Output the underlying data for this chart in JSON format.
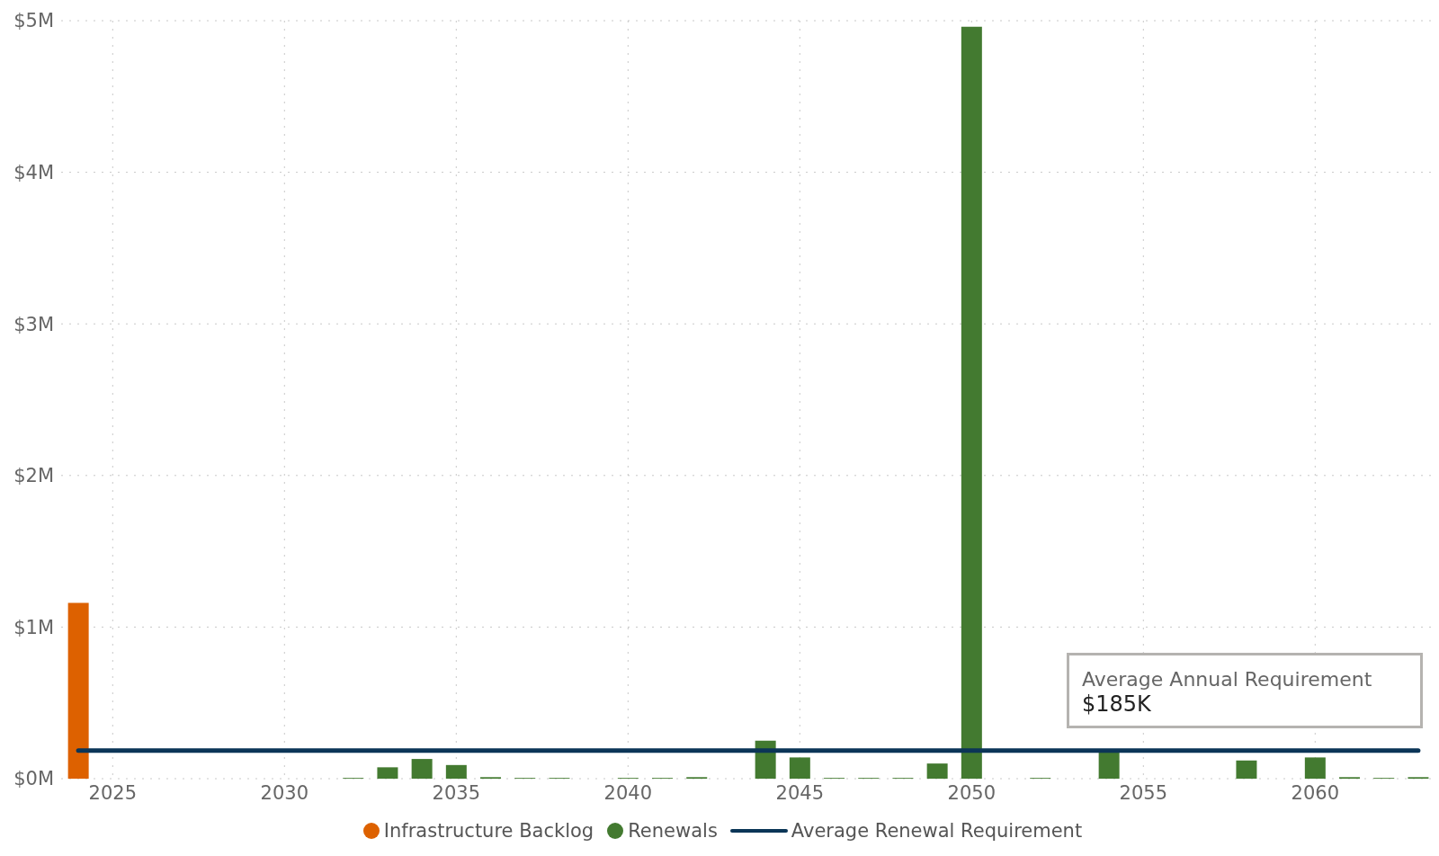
{
  "chart_data": {
    "type": "bar",
    "stacked": true,
    "categories": [
      null,
      "2025",
      null,
      null,
      null,
      null,
      "2030",
      null,
      null,
      null,
      null,
      "2035",
      null,
      null,
      null,
      null,
      "2040",
      null,
      null,
      null,
      null,
      "2045",
      null,
      null,
      null,
      null,
      "2050",
      null,
      null,
      null,
      null,
      "2055",
      null,
      null,
      null,
      null,
      "2060",
      null,
      null,
      null
    ],
    "series": [
      {
        "name": "Infrastructure Backlog",
        "color": "#dd6100",
        "values": [
          1.16,
          null,
          null,
          null,
          null,
          null,
          null,
          null,
          null,
          null,
          null,
          null,
          null,
          null,
          null,
          null,
          null,
          null,
          null,
          null,
          null,
          null,
          null,
          null,
          null,
          null,
          null,
          null,
          null,
          null,
          null,
          null,
          null,
          null,
          null,
          null,
          null,
          null,
          null,
          null
        ]
      },
      {
        "name": "Renewals",
        "color": "#437a30",
        "values": [
          null,
          null,
          null,
          null,
          null,
          null,
          null,
          null,
          0.005,
          0.075,
          0.13,
          0.09,
          0.01,
          0.005,
          0.005,
          null,
          0.005,
          0.005,
          0.01,
          null,
          0.25,
          0.14,
          0.005,
          0.005,
          0.005,
          0.1,
          4.96,
          null,
          0.005,
          null,
          0.18,
          null,
          null,
          null,
          0.12,
          null,
          0.14,
          0.01,
          0.005,
          0.01
        ]
      },
      {
        "name": "Average Renewal Requirement",
        "type": "line",
        "color": "#0b3557",
        "values": [
          0.185,
          0.185,
          0.185,
          0.185,
          0.185,
          0.185,
          0.185,
          0.185,
          0.185,
          0.185,
          0.185,
          0.185,
          0.185,
          0.185,
          0.185,
          0.185,
          0.185,
          0.185,
          0.185,
          0.185,
          0.185,
          0.185,
          0.185,
          0.185,
          0.185,
          0.185,
          0.185,
          0.185,
          0.185,
          0.185,
          0.185,
          0.185,
          0.185,
          0.185,
          0.185,
          0.185,
          0.185,
          0.185,
          0.185,
          0.185
        ]
      }
    ],
    "ylim": [
      0,
      5
    ],
    "yticks": [
      {
        "value": 0,
        "label": "$0M"
      },
      {
        "value": 1,
        "label": "$1M"
      },
      {
        "value": 2,
        "label": "$2M"
      },
      {
        "value": 3,
        "label": "$3M"
      },
      {
        "value": 4,
        "label": "$4M"
      },
      {
        "value": 5,
        "label": "$5M"
      }
    ],
    "grid": true,
    "legend": "bottom",
    "annotations": [
      "Average Annual Requirement",
      "$185K"
    ]
  }
}
